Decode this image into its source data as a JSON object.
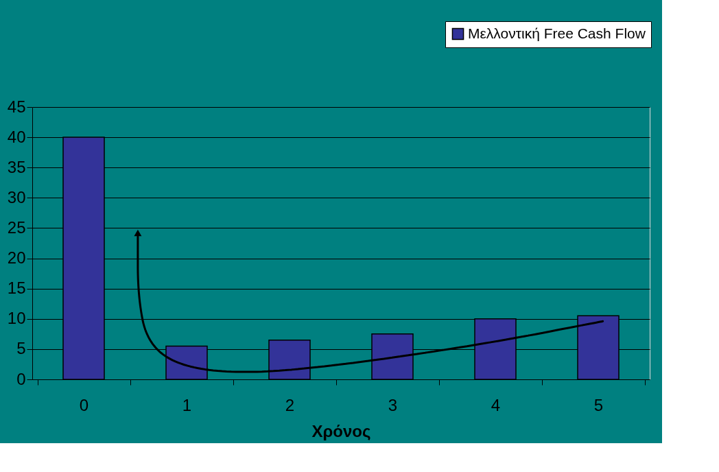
{
  "chart_data": {
    "type": "bar",
    "xlabel": "Χρόνος",
    "categories": [
      "0",
      "1",
      "2",
      "3",
      "4",
      "5"
    ],
    "series": [
      {
        "name": "Μελλοντική Free Cash Flow",
        "color": "#333399",
        "values": [
          40,
          5.5,
          6.5,
          7.5,
          10,
          10.5
        ]
      }
    ],
    "ylim": [
      0,
      45
    ],
    "yticks": [
      0,
      5,
      10,
      15,
      20,
      25,
      30,
      35,
      40,
      45
    ],
    "grid": "y",
    "legend": "top right"
  }
}
